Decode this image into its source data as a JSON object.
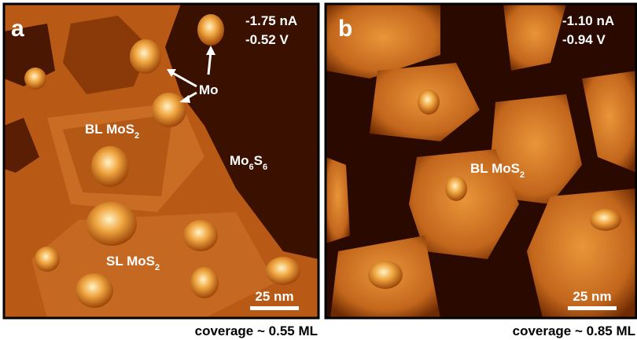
{
  "panels": [
    {
      "letter": "a",
      "current": "-1.75 nA",
      "voltage": "-0.52 V",
      "scale_bar": "25 nm",
      "coverage": "coverage ~ 0.55 ML",
      "labels": [
        {
          "parts": [
            {
              "text": "Mo"
            }
          ]
        },
        {
          "parts": [
            {
              "text": "BL MoS"
            },
            {
              "sub": "2"
            }
          ]
        },
        {
          "parts": [
            {
              "text": "Mo"
            },
            {
              "sub": "6"
            },
            {
              "text": "S"
            },
            {
              "sub": "6"
            }
          ]
        },
        {
          "parts": [
            {
              "text": "SL MoS"
            },
            {
              "sub": "2"
            }
          ]
        }
      ]
    },
    {
      "letter": "b",
      "current": "-1.10 nA",
      "voltage": "-0.94 V",
      "scale_bar": "25 nm",
      "coverage": "coverage ~ 0.85 ML",
      "labels": [
        {
          "parts": [
            {
              "text": "BL MoS"
            },
            {
              "sub": "2"
            }
          ]
        }
      ]
    }
  ]
}
